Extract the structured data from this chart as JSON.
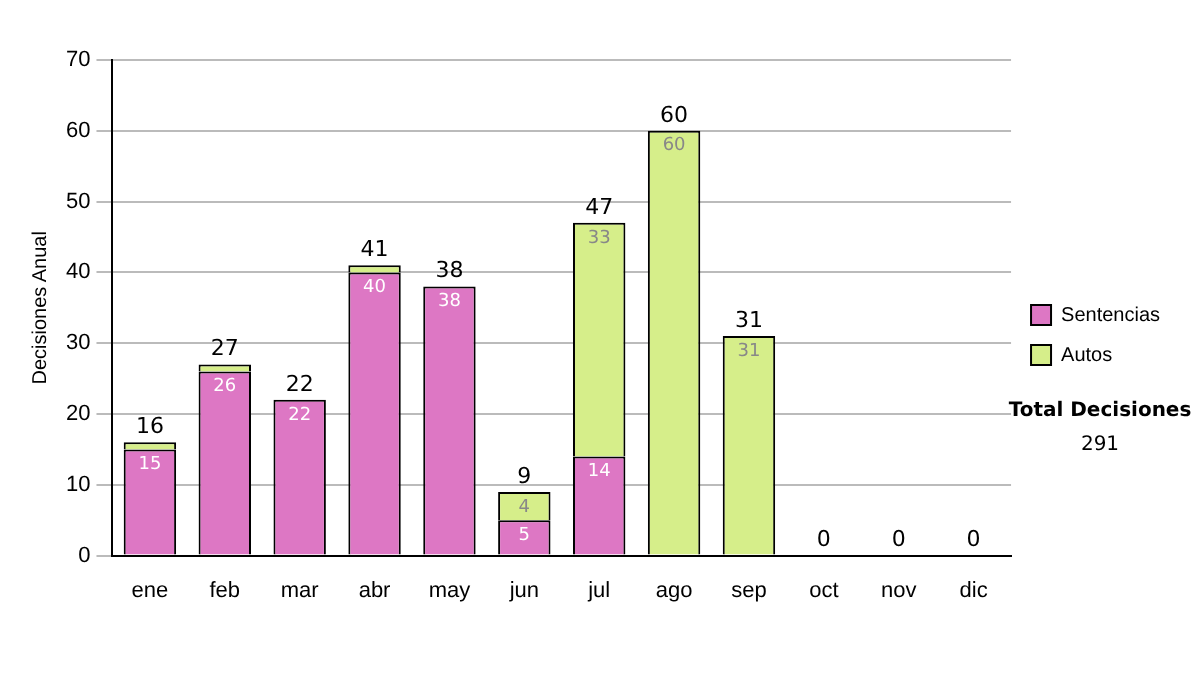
{
  "chart_data": {
    "type": "bar",
    "stacked": true,
    "ylabel": "Decisiones Anual",
    "categories": [
      "ene",
      "feb",
      "mar",
      "abr",
      "may",
      "jun",
      "jul",
      "ago",
      "sep",
      "oct",
      "nov",
      "dic"
    ],
    "series": [
      {
        "name": "Sentencias",
        "color": "#dd77c4",
        "values": [
          15,
          26,
          22,
          40,
          38,
          5,
          14,
          0,
          0,
          0,
          0,
          0
        ],
        "value_labels": [
          "15",
          "26",
          "22",
          "40",
          "38",
          "5",
          "14",
          null,
          null,
          null,
          null,
          null
        ]
      },
      {
        "name": "Autos",
        "color": "#d6ee8a",
        "values": [
          1,
          1,
          0,
          1,
          0,
          4,
          33,
          60,
          31,
          0,
          0,
          0
        ],
        "value_labels": [
          null,
          null,
          null,
          null,
          null,
          "4",
          "33",
          "60",
          "31",
          null,
          null,
          null
        ]
      }
    ],
    "totals": [
      "16",
      "27",
      "22",
      "41",
      "38",
      "9",
      "47",
      "60",
      "31",
      "0",
      "0",
      "0"
    ],
    "ylim": [
      0,
      70
    ],
    "yticks": [
      0,
      10,
      20,
      30,
      40,
      50,
      60,
      70
    ],
    "grid": "y",
    "legend": "right",
    "annotations": [
      "Total Decisiones",
      "291"
    ]
  }
}
